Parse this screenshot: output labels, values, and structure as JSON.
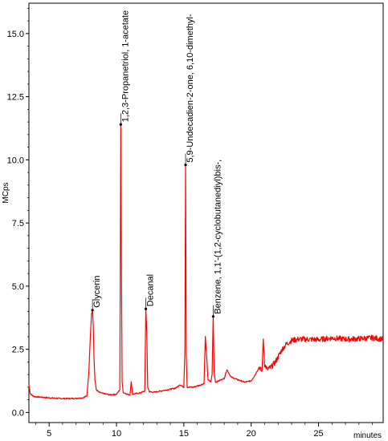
{
  "chart_data": {
    "type": "line",
    "title": "",
    "xlabel": "minutes",
    "ylabel": "MCps",
    "xlim": [
      3.5,
      29.8
    ],
    "ylim": [
      -0.4,
      16.2
    ],
    "x_ticks": [
      5,
      10,
      15,
      20,
      25
    ],
    "x_tick_labels": [
      "5",
      "10",
      "15",
      "20",
      "25"
    ],
    "y_ticks": [
      0.0,
      2.5,
      5.0,
      7.5,
      10.0,
      12.5,
      15.0
    ],
    "y_tick_labels": [
      "0.0",
      "2.5",
      "5.0",
      "7.5",
      "10.0",
      "12.5",
      "15.0"
    ],
    "grid": false,
    "line_color": "#ff0000",
    "series": [
      {
        "x": [
          3.5,
          3.6,
          3.8,
          4.0,
          4.5,
          5.0,
          5.5,
          6.0,
          6.5,
          7.0,
          7.5,
          7.8,
          7.95,
          8.05,
          8.15,
          8.22,
          8.28,
          8.33,
          8.4,
          8.5,
          8.7,
          9.0,
          9.5,
          10.0,
          10.25,
          10.32,
          10.37,
          10.42,
          10.5,
          10.8,
          11.0,
          11.1,
          11.2,
          11.5,
          11.8,
          12.1,
          12.18,
          12.25,
          12.32,
          12.45,
          12.8,
          13.3,
          13.8,
          14.3,
          14.5,
          14.7,
          15.0,
          15.08,
          15.13,
          15.18,
          15.25,
          15.4,
          15.7,
          16.0,
          16.3,
          16.5,
          16.6,
          16.8,
          17.0,
          17.1,
          17.18,
          17.25,
          17.35,
          17.6,
          18.0,
          18.2,
          18.5,
          19.0,
          19.5,
          20.0,
          20.3,
          20.6,
          20.8,
          20.9,
          21.0,
          21.2,
          21.5,
          21.8,
          22.0,
          22.3,
          22.6,
          23.0,
          23.5,
          24.0,
          25.0,
          26.0,
          27.0,
          28.0,
          29.0,
          29.8
        ],
        "y": [
          1.1,
          0.75,
          0.65,
          0.62,
          0.6,
          0.58,
          0.56,
          0.55,
          0.55,
          0.56,
          0.58,
          0.65,
          1.6,
          2.9,
          3.9,
          4.05,
          3.4,
          2.2,
          1.3,
          0.9,
          0.8,
          0.75,
          0.7,
          0.72,
          0.9,
          11.4,
          5.5,
          1.2,
          0.8,
          0.72,
          0.7,
          1.2,
          0.72,
          0.75,
          0.78,
          0.85,
          4.1,
          3.2,
          1.0,
          0.82,
          0.8,
          0.85,
          0.9,
          0.95,
          1.0,
          1.1,
          1.0,
          2.5,
          9.8,
          2.2,
          1.0,
          1.0,
          1.0,
          1.05,
          1.1,
          1.15,
          3.0,
          1.3,
          1.2,
          1.5,
          3.8,
          1.6,
          1.2,
          1.25,
          1.35,
          1.7,
          1.4,
          1.3,
          1.2,
          1.25,
          1.5,
          1.8,
          1.6,
          2.9,
          1.9,
          1.7,
          1.8,
          2.0,
          2.2,
          2.5,
          2.7,
          2.85,
          2.9,
          2.9,
          2.88,
          2.95,
          2.9,
          2.92,
          2.95,
          2.9
        ]
      }
    ],
    "annotations": [
      {
        "x": 8.22,
        "y": 4.05,
        "text": "Glycerin"
      },
      {
        "x": 10.32,
        "y": 11.4,
        "text": "1,2,3-Propanetriol, 1-acetate"
      },
      {
        "x": 12.18,
        "y": 4.1,
        "text": "Decanal"
      },
      {
        "x": 15.13,
        "y": 9.8,
        "text": "5,9-Undecadien-2-one, 6,10-dimethyl-"
      },
      {
        "x": 17.18,
        "y": 3.8,
        "text": "Benzene, 1,1'-(1,2-cyclobutanediyl)bis-,"
      }
    ]
  }
}
